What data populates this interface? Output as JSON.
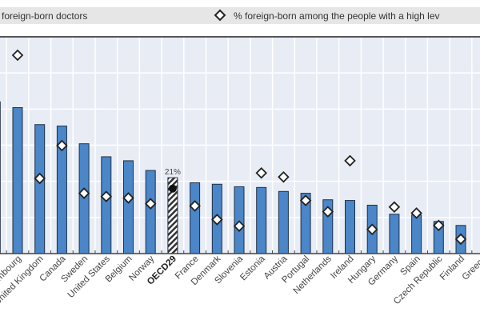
{
  "chart_data": {
    "type": "bar",
    "legend": {
      "position": "top",
      "bar_series_label": "foreign-born doctors",
      "marker_series_label": "% foreign-born among the people with a high lev"
    },
    "categories": [
      "",
      "Luxembourg",
      "United Kingdom",
      "Canada",
      "Sweden",
      "United States",
      "Belgium",
      "Norway",
      "OECD29",
      "France",
      "Denmark",
      "Slovenia",
      "Estonia",
      "Austria",
      "Portugal",
      "Netherlands",
      "Ireland",
      "Hungary",
      "Germany",
      "Spain",
      "Czech Republic",
      "Finland",
      "Greece"
    ],
    "highlight_category": "OECD29",
    "series": [
      {
        "type": "bar",
        "values": [
          42,
          40.4,
          35.7,
          35.3,
          30.4,
          26.8,
          25.7,
          23.0,
          21,
          19.6,
          19.2,
          18.5,
          18.3,
          17.2,
          16.7,
          14.9,
          14.7,
          13.4,
          10.9,
          10.7,
          8.9,
          7.8,
          null
        ]
      },
      {
        "type": "marker",
        "values": [
          null,
          54.9,
          20.8,
          29.9,
          16.7,
          15.8,
          15.4,
          13.8,
          18,
          13.2,
          9.4,
          7.6,
          22.3,
          21.2,
          14.7,
          11.6,
          25.7,
          6.7,
          12.9,
          11.2,
          7.8,
          4.0,
          null
        ]
      }
    ],
    "data_labels": {
      "OECD29": "21%"
    },
    "ylim": [
      0,
      60
    ],
    "grid": true,
    "colors": {
      "bar": "#4a86c8",
      "bar_edge": "#1e2f45",
      "plot_bg": "#e8ecf4",
      "legend_bg": "#e6e6e6"
    }
  }
}
